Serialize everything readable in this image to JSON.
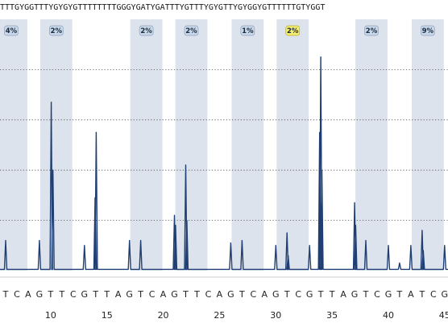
{
  "sequence": "TTTGYGGTTTYGYGYGTTTTTTTTGGGYGATYGATTTYGTTTYGYGTTYGYGGYGTTTTTTGTYGGT",
  "chart_data": {
    "type": "line",
    "title": "",
    "xlabel": "",
    "ylabel": "",
    "x_range": [
      5.5,
      45.3
    ],
    "y_range": [
      0,
      1
    ],
    "grid": "horizontal dotted",
    "trace_color": "#1f3f73",
    "band_color": "#dde3ec",
    "badge_color": "#c8d8ea",
    "highlight_badge_color": "#f6ee72",
    "x_ticks": [
      10,
      15,
      20,
      25,
      30,
      35,
      40,
      45
    ],
    "x_tick_labels": [
      "10",
      "15",
      "20",
      "25",
      "30",
      "35",
      "40",
      "45"
    ],
    "bases": [
      "T",
      "C",
      "A",
      "G",
      "T",
      "T",
      "C",
      "G",
      "T",
      "T",
      "A",
      "G",
      "T",
      "C",
      "A",
      "G",
      "T",
      "T",
      "C",
      "A",
      "G",
      "T",
      "C",
      "A",
      "G",
      "T",
      "C",
      "G",
      "T",
      "T",
      "A",
      "G",
      "T",
      "C",
      "G",
      "T",
      "A",
      "T",
      "C",
      "G"
    ],
    "bases_start": 6,
    "cpg_sites": [
      {
        "pos": 6.25,
        "label": "4%",
        "highlight": false
      },
      {
        "pos": 10.25,
        "label": "2%",
        "highlight": false
      },
      {
        "pos": 18.25,
        "label": "2%",
        "highlight": false
      },
      {
        "pos": 22.25,
        "label": "2%",
        "highlight": false
      },
      {
        "pos": 27.25,
        "label": "1%",
        "highlight": false
      },
      {
        "pos": 31.25,
        "label": "2%",
        "highlight": true
      },
      {
        "pos": 38.25,
        "label": "2%",
        "highlight": false
      },
      {
        "pos": 43.25,
        "label": "9%",
        "highlight": false
      }
    ],
    "peaks": [
      {
        "x": 6.0,
        "y": 0.12
      },
      {
        "x": 9.0,
        "y": 0.12
      },
      {
        "x": 10.05,
        "y": 0.67
      },
      {
        "x": 10.2,
        "y": 0.4
      },
      {
        "x": 13.0,
        "y": 0.1
      },
      {
        "x": 13.95,
        "y": 0.29
      },
      {
        "x": 14.05,
        "y": 0.55
      },
      {
        "x": 17.0,
        "y": 0.12
      },
      {
        "x": 18.0,
        "y": 0.12
      },
      {
        "x": 21.0,
        "y": 0.22
      },
      {
        "x": 21.1,
        "y": 0.18
      },
      {
        "x": 22.0,
        "y": 0.42
      },
      {
        "x": 22.1,
        "y": 0.2
      },
      {
        "x": 26.0,
        "y": 0.11
      },
      {
        "x": 27.0,
        "y": 0.12
      },
      {
        "x": 30.0,
        "y": 0.1
      },
      {
        "x": 31.0,
        "y": 0.15
      },
      {
        "x": 31.1,
        "y": 0.06
      },
      {
        "x": 33.0,
        "y": 0.1
      },
      {
        "x": 33.9,
        "y": 0.55
      },
      {
        "x": 34.0,
        "y": 0.85
      },
      {
        "x": 34.1,
        "y": 0.4
      },
      {
        "x": 37.0,
        "y": 0.27
      },
      {
        "x": 37.1,
        "y": 0.18
      },
      {
        "x": 38.0,
        "y": 0.12
      },
      {
        "x": 40.0,
        "y": 0.1
      },
      {
        "x": 41.0,
        "y": 0.03
      },
      {
        "x": 42.0,
        "y": 0.1
      },
      {
        "x": 43.0,
        "y": 0.16
      },
      {
        "x": 43.1,
        "y": 0.08
      },
      {
        "x": 45.0,
        "y": 0.1
      }
    ]
  }
}
